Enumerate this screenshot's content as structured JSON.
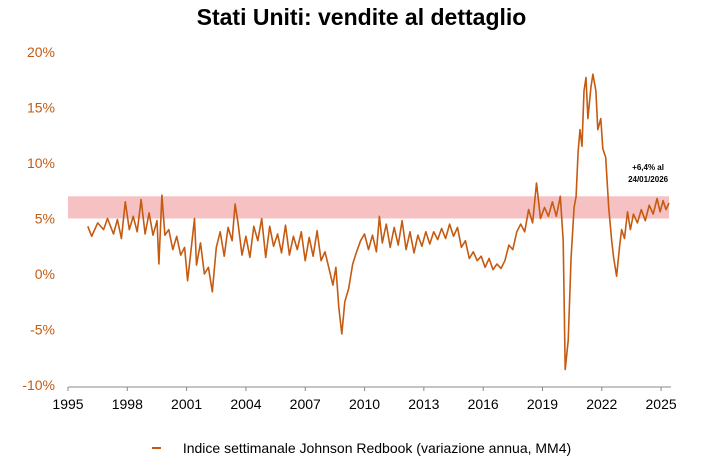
{
  "chart_data": {
    "type": "line",
    "title": "Stati Uniti: vendite al dettaglio",
    "xlabel": "",
    "ylabel": "",
    "x_ticks": [
      "1995",
      "1998",
      "2001",
      "2004",
      "2007",
      "2010",
      "2013",
      "2016",
      "2019",
      "2022",
      "2025"
    ],
    "y_ticks": [
      "20%",
      "15%",
      "10%",
      "5%",
      "0%",
      "-5%",
      "-10%"
    ],
    "xlim": [
      1995,
      2025.4
    ],
    "ylim": [
      -10,
      20
    ],
    "band": {
      "from": 5,
      "to": 7,
      "color": "#f4b6b9"
    },
    "annotation": {
      "text_line1": "+6,4% al",
      "text_line2": "24/01/2026",
      "x": 2025.0,
      "y": 6.4
    },
    "series": [
      {
        "name": "Indice settimanale Johnson Redbook (variazione annua, MM4)",
        "color": "#c55a11",
        "points": [
          [
            1996.0,
            4.3
          ],
          [
            1996.2,
            3.4
          ],
          [
            1996.5,
            4.6
          ],
          [
            1996.8,
            4.0
          ],
          [
            1997.0,
            5.0
          ],
          [
            1997.3,
            3.6
          ],
          [
            1997.5,
            4.9
          ],
          [
            1997.7,
            3.2
          ],
          [
            1997.9,
            6.5
          ],
          [
            1998.1,
            4.0
          ],
          [
            1998.3,
            5.2
          ],
          [
            1998.5,
            3.8
          ],
          [
            1998.7,
            6.7
          ],
          [
            1998.9,
            3.6
          ],
          [
            1999.1,
            5.5
          ],
          [
            1999.3,
            3.5
          ],
          [
            1999.5,
            4.8
          ],
          [
            1999.6,
            0.9
          ],
          [
            1999.75,
            7.1
          ],
          [
            1999.9,
            3.5
          ],
          [
            2000.1,
            4.0
          ],
          [
            2000.3,
            2.2
          ],
          [
            2000.5,
            3.4
          ],
          [
            2000.7,
            1.7
          ],
          [
            2000.9,
            2.4
          ],
          [
            2001.05,
            -0.6
          ],
          [
            2001.2,
            1.8
          ],
          [
            2001.4,
            5.0
          ],
          [
            2001.5,
            0.8
          ],
          [
            2001.7,
            2.8
          ],
          [
            2001.9,
            0.0
          ],
          [
            2002.1,
            0.6
          ],
          [
            2002.3,
            -1.6
          ],
          [
            2002.5,
            2.4
          ],
          [
            2002.7,
            3.8
          ],
          [
            2002.9,
            1.6
          ],
          [
            2003.1,
            4.2
          ],
          [
            2003.3,
            3.0
          ],
          [
            2003.45,
            6.3
          ],
          [
            2003.6,
            4.6
          ],
          [
            2003.8,
            1.7
          ],
          [
            2004.0,
            3.4
          ],
          [
            2004.2,
            1.5
          ],
          [
            2004.4,
            4.3
          ],
          [
            2004.6,
            3.0
          ],
          [
            2004.8,
            5.0
          ],
          [
            2005.0,
            1.5
          ],
          [
            2005.2,
            4.3
          ],
          [
            2005.4,
            2.5
          ],
          [
            2005.6,
            3.6
          ],
          [
            2005.8,
            1.9
          ],
          [
            2006.0,
            4.4
          ],
          [
            2006.2,
            1.7
          ],
          [
            2006.4,
            3.4
          ],
          [
            2006.6,
            2.2
          ],
          [
            2006.8,
            3.8
          ],
          [
            2007.0,
            1.2
          ],
          [
            2007.2,
            3.3
          ],
          [
            2007.4,
            1.6
          ],
          [
            2007.6,
            3.9
          ],
          [
            2007.8,
            1.2
          ],
          [
            2008.0,
            2.0
          ],
          [
            2008.2,
            0.5
          ],
          [
            2008.4,
            -1.0
          ],
          [
            2008.55,
            0.6
          ],
          [
            2008.7,
            -3.0
          ],
          [
            2008.85,
            -5.4
          ],
          [
            2009.0,
            -2.5
          ],
          [
            2009.2,
            -1.3
          ],
          [
            2009.4,
            0.9
          ],
          [
            2009.6,
            2.0
          ],
          [
            2009.8,
            3.0
          ],
          [
            2010.0,
            3.6
          ],
          [
            2010.2,
            2.2
          ],
          [
            2010.4,
            3.5
          ],
          [
            2010.6,
            2.0
          ],
          [
            2010.75,
            5.2
          ],
          [
            2010.9,
            2.8
          ],
          [
            2011.1,
            4.5
          ],
          [
            2011.3,
            2.4
          ],
          [
            2011.5,
            4.2
          ],
          [
            2011.7,
            2.6
          ],
          [
            2011.9,
            4.8
          ],
          [
            2012.1,
            2.2
          ],
          [
            2012.3,
            3.8
          ],
          [
            2012.5,
            1.9
          ],
          [
            2012.7,
            3.5
          ],
          [
            2012.9,
            2.5
          ],
          [
            2013.1,
            3.8
          ],
          [
            2013.3,
            2.7
          ],
          [
            2013.5,
            3.8
          ],
          [
            2013.7,
            3.1
          ],
          [
            2013.9,
            4.1
          ],
          [
            2014.1,
            3.2
          ],
          [
            2014.3,
            4.5
          ],
          [
            2014.5,
            3.4
          ],
          [
            2014.7,
            4.2
          ],
          [
            2014.9,
            2.4
          ],
          [
            2015.1,
            3.0
          ],
          [
            2015.3,
            1.4
          ],
          [
            2015.5,
            2.0
          ],
          [
            2015.7,
            1.2
          ],
          [
            2015.9,
            1.6
          ],
          [
            2016.1,
            0.6
          ],
          [
            2016.3,
            1.4
          ],
          [
            2016.5,
            0.4
          ],
          [
            2016.7,
            0.9
          ],
          [
            2016.9,
            0.5
          ],
          [
            2017.1,
            1.2
          ],
          [
            2017.3,
            2.6
          ],
          [
            2017.5,
            2.2
          ],
          [
            2017.7,
            3.8
          ],
          [
            2017.9,
            4.5
          ],
          [
            2018.1,
            3.8
          ],
          [
            2018.3,
            5.8
          ],
          [
            2018.5,
            4.6
          ],
          [
            2018.7,
            8.2
          ],
          [
            2018.9,
            5.0
          ],
          [
            2019.1,
            6.0
          ],
          [
            2019.3,
            5.2
          ],
          [
            2019.5,
            6.5
          ],
          [
            2019.7,
            5.2
          ],
          [
            2019.9,
            7.0
          ],
          [
            2020.05,
            3.0
          ],
          [
            2020.15,
            -8.6
          ],
          [
            2020.3,
            -6.0
          ],
          [
            2020.45,
            1.5
          ],
          [
            2020.6,
            6.0
          ],
          [
            2020.7,
            7.0
          ],
          [
            2020.8,
            11.0
          ],
          [
            2020.9,
            13.0
          ],
          [
            2021.0,
            11.5
          ],
          [
            2021.1,
            16.5
          ],
          [
            2021.2,
            17.7
          ],
          [
            2021.3,
            14.0
          ],
          [
            2021.45,
            16.8
          ],
          [
            2021.55,
            18.0
          ],
          [
            2021.7,
            16.5
          ],
          [
            2021.8,
            13.0
          ],
          [
            2021.95,
            14.0
          ],
          [
            2022.05,
            11.3
          ],
          [
            2022.2,
            10.5
          ],
          [
            2022.35,
            6.0
          ],
          [
            2022.5,
            3.0
          ],
          [
            2022.6,
            1.5
          ],
          [
            2022.75,
            -0.2
          ],
          [
            2022.9,
            2.5
          ],
          [
            2023.0,
            4.0
          ],
          [
            2023.15,
            3.2
          ],
          [
            2023.3,
            5.6
          ],
          [
            2023.45,
            4.0
          ],
          [
            2023.6,
            5.4
          ],
          [
            2023.8,
            4.6
          ],
          [
            2024.0,
            5.8
          ],
          [
            2024.2,
            4.8
          ],
          [
            2024.4,
            6.2
          ],
          [
            2024.6,
            5.4
          ],
          [
            2024.8,
            6.8
          ],
          [
            2024.95,
            5.6
          ],
          [
            2025.1,
            6.6
          ],
          [
            2025.25,
            5.8
          ],
          [
            2025.4,
            6.4
          ]
        ]
      }
    ],
    "grid": false,
    "legend_position": "bottom"
  }
}
